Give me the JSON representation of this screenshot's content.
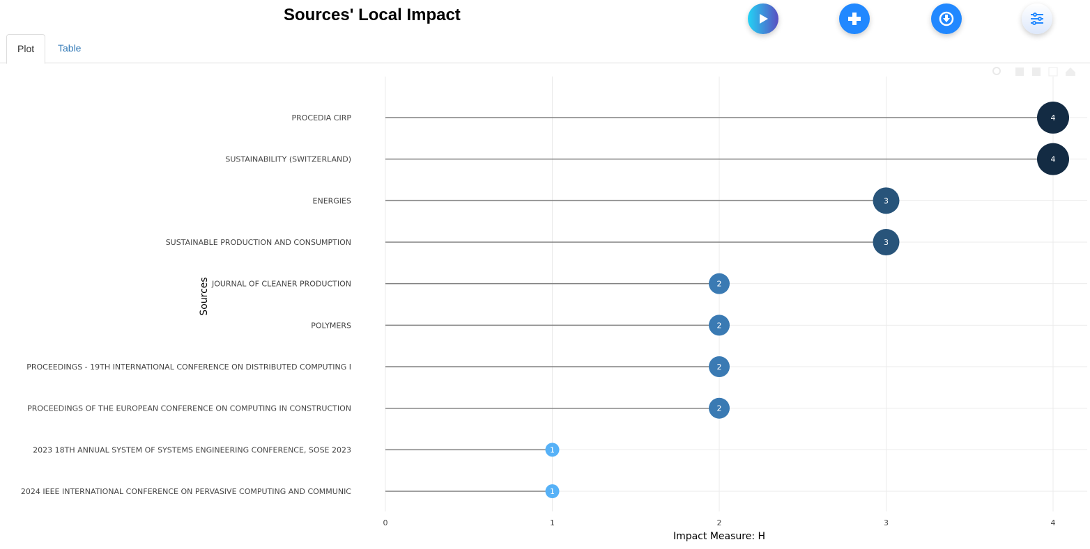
{
  "header": {
    "title": "Sources' Local Impact"
  },
  "toolbar": {
    "buttons": [
      "play-icon",
      "plus-icon",
      "download-icon",
      "sliders-icon"
    ]
  },
  "tabs": [
    {
      "label": "Plot"
    },
    {
      "label": "Table"
    }
  ],
  "colors": {
    "accent": "#2188ff",
    "v4": "#132b43",
    "v3": "#28547a",
    "v2": "#3a7ab3",
    "v1": "#56b1f7",
    "stem": "#808080"
  },
  "chart_data": {
    "type": "lollipop",
    "title": "Sources' Local Impact",
    "xlabel": "Impact Measure: H",
    "ylabel": "Sources",
    "xlim": [
      0,
      4
    ],
    "xticks": [
      "0",
      "1",
      "2",
      "3",
      "4"
    ],
    "categories": [
      "PROCEDIA CIRP",
      "SUSTAINABILITY (SWITZERLAND)",
      "ENERGIES",
      "SUSTAINABLE PRODUCTION AND CONSUMPTION",
      "JOURNAL OF CLEANER PRODUCTION",
      "POLYMERS",
      "PROCEEDINGS - 19TH INTERNATIONAL CONFERENCE ON DISTRIBUTED COMPUTING I",
      "PROCEEDINGS OF THE EUROPEAN CONFERENCE ON COMPUTING IN CONSTRUCTION",
      "2023 18TH ANNUAL SYSTEM OF SYSTEMS ENGINEERING CONFERENCE, SOSE 2023",
      "2024 IEEE INTERNATIONAL CONFERENCE ON PERVASIVE COMPUTING AND COMMUNIC"
    ],
    "values": [
      4,
      4,
      3,
      3,
      2,
      2,
      2,
      2,
      1,
      1
    ],
    "grid": true
  }
}
